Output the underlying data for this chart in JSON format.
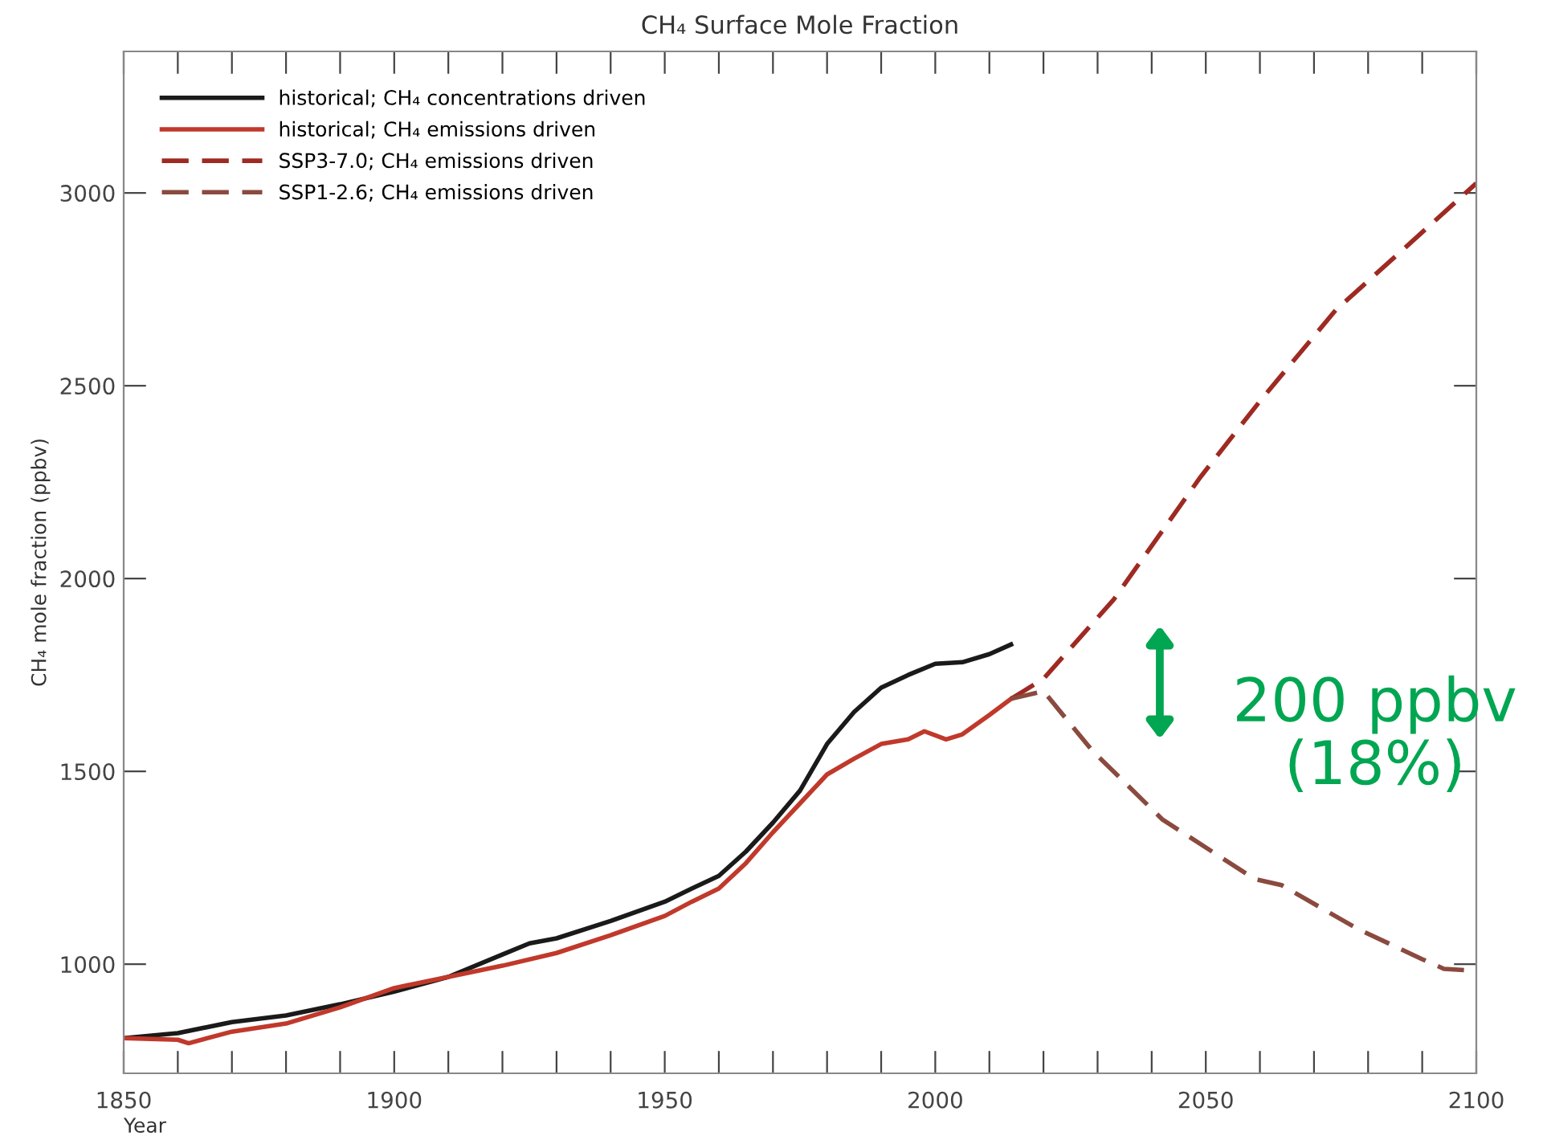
{
  "chart_data": {
    "type": "line",
    "title": "CH₄ Surface Mole Fraction",
    "xlabel": "Year",
    "ylabel": "CH₄ mole fraction (ppbv)",
    "xlim": [
      1850,
      2100
    ],
    "ylim": [
      717,
      3367
    ],
    "xticks": [
      1850,
      {
        "value": 1860,
        "label": null
      },
      {
        "value": 1870,
        "label": null
      },
      {
        "value": 1880,
        "label": null
      },
      {
        "value": 1890,
        "label": null
      },
      1900,
      {
        "value": 1910,
        "label": null
      },
      {
        "value": 1920,
        "label": null
      },
      {
        "value": 1930,
        "label": null
      },
      {
        "value": 1940,
        "label": null
      },
      1950,
      {
        "value": 1960,
        "label": null
      },
      {
        "value": 1970,
        "label": null
      },
      {
        "value": 1980,
        "label": null
      },
      {
        "value": 1990,
        "label": null
      },
      2000,
      {
        "value": 2010,
        "label": null
      },
      {
        "value": 2020,
        "label": null
      },
      {
        "value": 2030,
        "label": null
      },
      {
        "value": 2040,
        "label": null
      },
      2050,
      {
        "value": 2060,
        "label": null
      },
      {
        "value": 2070,
        "label": null
      },
      {
        "value": 2080,
        "label": null
      },
      {
        "value": 2090,
        "label": null
      },
      2100
    ],
    "yticks": [
      1000,
      1500,
      2000,
      2500,
      3000
    ],
    "grid": false,
    "legend": "top left",
    "marker": "none",
    "series": [
      {
        "name": "historical; CH₄ concentrations driven",
        "color": "#1a1a1a",
        "line_style": "solid",
        "x": [
          1850,
          1860,
          1870,
          1880,
          1890,
          1900,
          1910,
          1920,
          1925,
          1930,
          1940,
          1950,
          1955,
          1960,
          1965,
          1970,
          1975,
          1980,
          1985,
          1990,
          1995,
          2000,
          2005,
          2010,
          2014
        ],
        "values": [
          808,
          821,
          850,
          867,
          896,
          929,
          967,
          1025,
          1054,
          1067,
          1112,
          1162,
          1196,
          1229,
          1292,
          1367,
          1450,
          1571,
          1654,
          1717,
          1750,
          1779,
          1783,
          1804,
          1829
        ]
      },
      {
        "name": "historical; CH₄ emissions driven",
        "color": "#c0392b",
        "line_style": "solid",
        "x": [
          1850,
          1860,
          1862,
          1870,
          1880,
          1890,
          1900,
          1910,
          1920,
          1930,
          1940,
          1950,
          1955,
          1960,
          1965,
          1970,
          1975,
          1980,
          1985,
          1990,
          1995,
          1998,
          2002,
          2005,
          2010,
          2014
        ],
        "values": [
          808,
          804,
          795,
          825,
          846,
          888,
          938,
          967,
          996,
          1029,
          1075,
          1125,
          1162,
          1196,
          1262,
          1342,
          1417,
          1492,
          1533,
          1571,
          1583,
          1604,
          1583,
          1596,
          1646,
          1688
        ]
      },
      {
        "name": "SSP3-7.0; CH₄ emissions driven",
        "color": "#9e2a22",
        "line_style": "dashed",
        "x": [
          2014,
          2020,
          2033,
          2049,
          2060,
          2074,
          2087,
          2100
        ],
        "values": [
          1688,
          1740,
          1946,
          2263,
          2460,
          2696,
          2860,
          3025
        ]
      },
      {
        "name": "SSP1-2.6; CH₄ emissions driven",
        "color": "#8b4a3f",
        "line_style": "dashed",
        "x": [
          2014,
          2020,
          2029,
          2042,
          2059,
          2064,
          2078,
          2090,
          2094,
          2100
        ],
        "values": [
          1688,
          1708,
          1554,
          1375,
          1221,
          1205,
          1092,
          1013,
          988,
          983
        ]
      }
    ],
    "annotations": [
      "200 ppbv\n(18%)"
    ]
  }
}
